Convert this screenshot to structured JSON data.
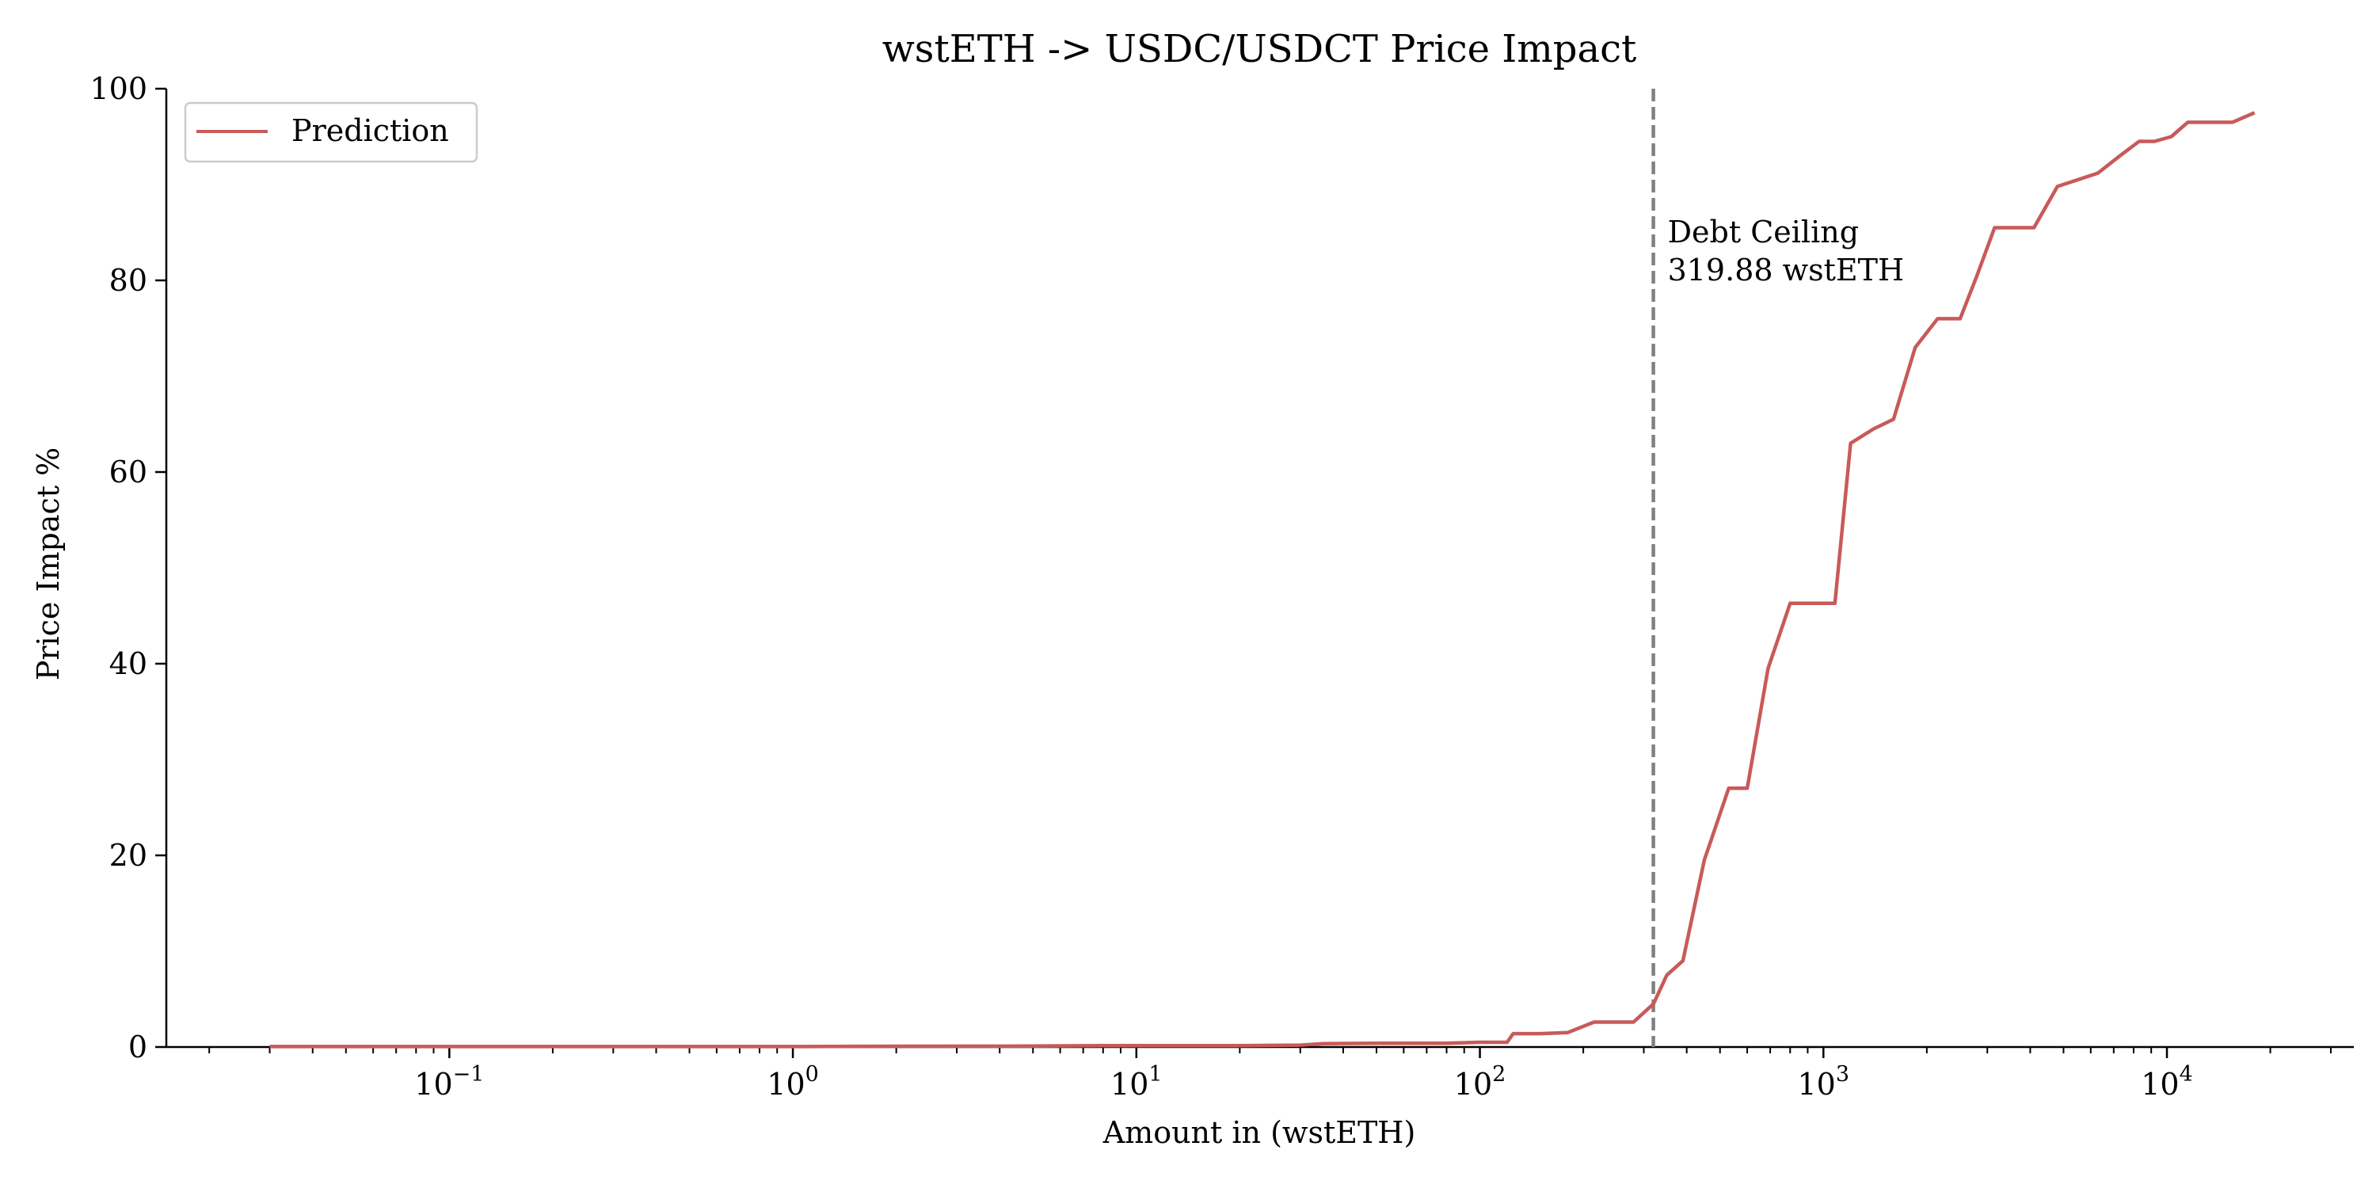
{
  "chart_data": {
    "type": "line",
    "title": "wstETH -> USDC/USDCT Price Impact",
    "xlabel": "Amount in (wstETH)",
    "ylabel": "Price Impact %",
    "xscale": "log",
    "xlim": [
      0.015,
      35000
    ],
    "ylim": [
      0,
      100
    ],
    "xticks": [
      {
        "value": 0.1,
        "label": "10",
        "exp": "−1"
      },
      {
        "value": 1,
        "label": "10",
        "exp": "0"
      },
      {
        "value": 10,
        "label": "10",
        "exp": "1"
      },
      {
        "value": 100,
        "label": "10",
        "exp": "2"
      },
      {
        "value": 1000,
        "label": "10",
        "exp": "3"
      },
      {
        "value": 10000,
        "label": "10",
        "exp": "4"
      }
    ],
    "yticks": [
      {
        "value": 0,
        "label": "0"
      },
      {
        "value": 20,
        "label": "20"
      },
      {
        "value": 40,
        "label": "40"
      },
      {
        "value": 60,
        "label": "60"
      },
      {
        "value": 80,
        "label": "80"
      },
      {
        "value": 100,
        "label": "100"
      }
    ],
    "grid": false,
    "legend": {
      "position": "top-left"
    },
    "series": [
      {
        "name": "Prediction",
        "color": "#c85a5a",
        "x": [
          0.03,
          0.1,
          0.3,
          1,
          2,
          5,
          8,
          10,
          20,
          30,
          35,
          50,
          80,
          100,
          120,
          125,
          150,
          180,
          215,
          280,
          320,
          350,
          390,
          450,
          530,
          600,
          690,
          800,
          900,
          1000,
          1080,
          1200,
          1400,
          1600,
          1850,
          2150,
          2500,
          2800,
          3150,
          3700,
          4100,
          4800,
          5500,
          6300,
          7300,
          8300,
          9200,
          10300,
          11500,
          13000,
          15500,
          18000
        ],
        "y": [
          0.05,
          0.05,
          0.05,
          0.05,
          0.08,
          0.1,
          0.15,
          0.15,
          0.15,
          0.2,
          0.35,
          0.4,
          0.4,
          0.5,
          0.5,
          1.4,
          1.4,
          1.5,
          2.6,
          2.6,
          4.5,
          7.5,
          9,
          19.5,
          27,
          27,
          39.5,
          46.3,
          46.3,
          46.3,
          46.3,
          63,
          64.5,
          65.5,
          73,
          76,
          76,
          80.5,
          85.5,
          85.5,
          85.5,
          89.8,
          90.5,
          91.2,
          93,
          94.5,
          94.5,
          95,
          96.5,
          96.5,
          96.5,
          97.5
        ]
      }
    ],
    "annotations": [
      {
        "type": "vline",
        "x": 319.88,
        "color": "#808080",
        "style": "dashed",
        "label_lines": [
          "Debt Ceiling",
          "319.88 wstETH"
        ],
        "label_y": 80
      }
    ]
  }
}
